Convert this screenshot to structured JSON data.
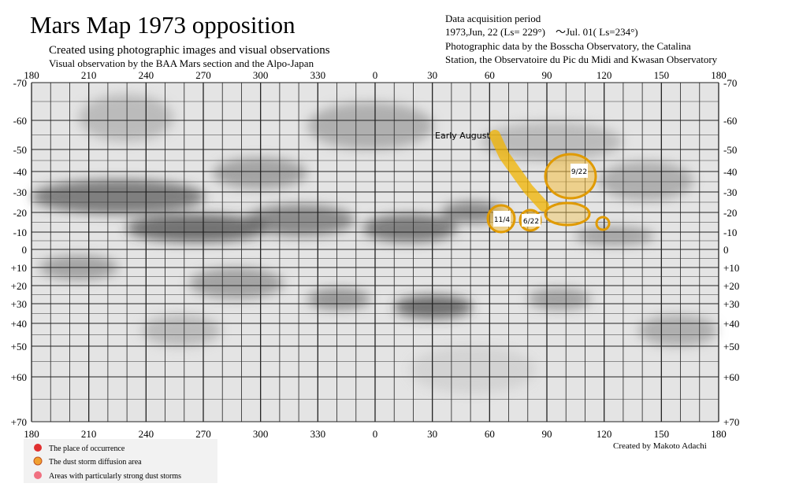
{
  "header": {
    "title": "Mars Map 1973   opposition",
    "subtitle": "Created using photographic images and visual observations",
    "visual_note": "Visual observation by the BAA Mars section and the Alpo-Japan"
  },
  "data_info": {
    "heading": "Data acquisition period",
    "period": "1973,Jun, 22 (Ls= 229°)　～Jul. 01( Ls=234°)",
    "lines": [
      "Photographic data by the Bosscha Observatory, the Catalina",
      "Station, the Observatoire du Pic du Midi and Kwasan Observatory"
    ]
  },
  "map": {
    "longitude_labels": [
      "180",
      "210",
      "240",
      "270",
      "300",
      "330",
      "0",
      "30",
      "60",
      "90",
      "120",
      "150",
      "180"
    ],
    "latitude_labels": [
      "-70",
      "-60",
      "-50",
      "-40",
      "-30",
      "-20",
      "-10",
      "0",
      "+10",
      "+20",
      "+30",
      "+40",
      "+50",
      "+60",
      "+70"
    ],
    "annotations": [
      "Early August",
      "9/22",
      "11/4",
      "6/22"
    ]
  },
  "legend": [
    "The place of occurrence",
    "The dust storm diffusion area",
    "Areas with particularly strong dust storms"
  ],
  "credit": "Created by Makoto Adachi"
}
